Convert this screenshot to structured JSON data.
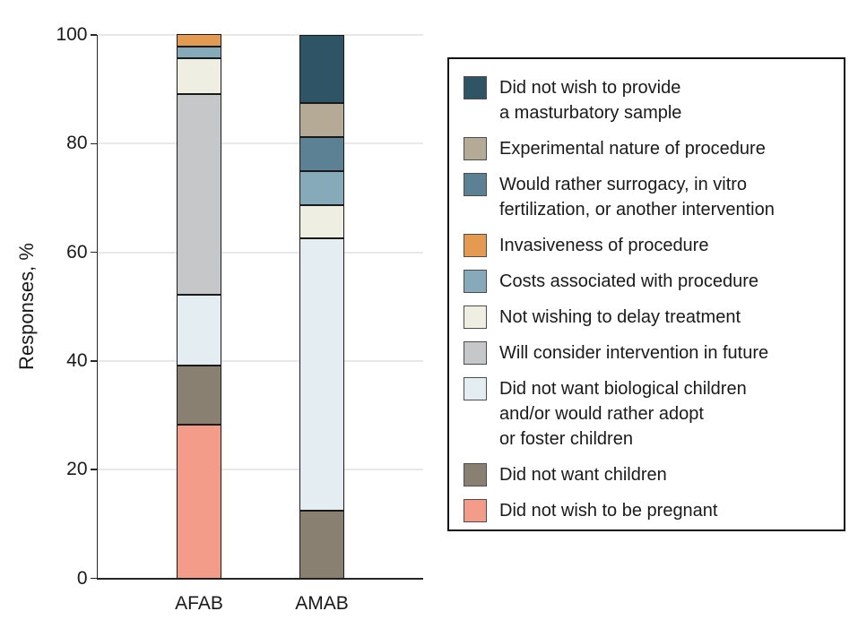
{
  "chart_data": {
    "type": "bar",
    "stacked": true,
    "title": "",
    "xlabel": "",
    "ylabel": "Responses, %",
    "ylim": [
      0,
      100
    ],
    "yticks": [
      0,
      20,
      40,
      60,
      80,
      100
    ],
    "grid": "horizontal",
    "legend_position": "right",
    "categories": [
      "AFAB",
      "AMAB"
    ],
    "series_top_to_bottom": [
      {
        "name": "Did not wish to provide\na masturbatory sample",
        "color": "#2E5465",
        "values": [
          0,
          12.5
        ]
      },
      {
        "name": "Experimental nature of procedure",
        "color": "#B4AA95",
        "values": [
          0,
          6.25
        ]
      },
      {
        "name": "Would rather surrogacy, in vitro\nfertilization, or another intervention",
        "color": "#5D8194",
        "values": [
          0,
          6.25
        ]
      },
      {
        "name": "Invasiveness of procedure",
        "color": "#E49B51",
        "values": [
          2.2,
          0
        ]
      },
      {
        "name": "Costs associated with procedure",
        "color": "#87AABB",
        "values": [
          2.2,
          6.25
        ]
      },
      {
        "name": "Not wishing to delay treatment",
        "color": "#EFEEE2",
        "values": [
          6.5,
          6.25
        ]
      },
      {
        "name": "Will consider intervention in future",
        "color": "#C6C7C9",
        "values": [
          37,
          0
        ]
      },
      {
        "name": "Did not want biological children\nand/or would rather adopt\nor foster children",
        "color": "#E4EDF2",
        "values": [
          13,
          50
        ]
      },
      {
        "name": "Did not want children",
        "color": "#8A8071",
        "values": [
          10.9,
          12.5
        ]
      },
      {
        "name": "Did not wish to be pregnant",
        "color": "#F29C89",
        "values": [
          28.3,
          0
        ]
      }
    ]
  }
}
